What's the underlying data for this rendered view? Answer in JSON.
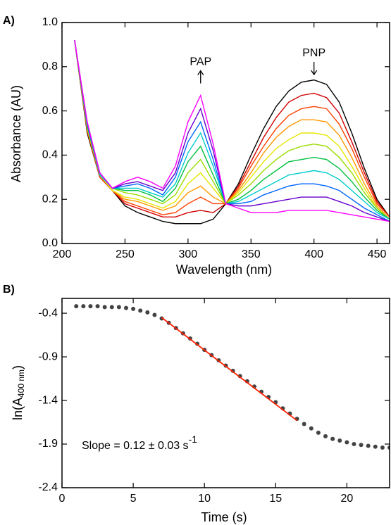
{
  "chart_data": [
    {
      "type": "line",
      "label": "A)",
      "xlabel": "Wavelength (nm)",
      "ylabel": "Absorbance (AU)",
      "xlim": [
        200,
        460
      ],
      "xticks": [
        200,
        250,
        300,
        350,
        400,
        450
      ],
      "ylim": [
        0,
        1
      ],
      "yticks": [
        {
          "value": 0,
          "label": "0.0"
        },
        0.2,
        0.4,
        0.6,
        0.8,
        {
          "value": 1,
          "label": "1.0"
        }
      ],
      "annotations": [
        {
          "text": "PAP",
          "x": 310,
          "y": 0.82,
          "arrow": "up"
        },
        {
          "text": "PNP",
          "x": 400,
          "y": 0.86,
          "arrow": "down"
        }
      ],
      "x": [
        210,
        220,
        230,
        240,
        250,
        260,
        270,
        280,
        290,
        300,
        310,
        320,
        330,
        340,
        350,
        360,
        370,
        380,
        390,
        400,
        410,
        420,
        430,
        440,
        450,
        460
      ],
      "series": [
        {
          "color": "#000000",
          "values": [
            0.92,
            0.5,
            0.3,
            0.24,
            0.17,
            0.14,
            0.12,
            0.1,
            0.09,
            0.09,
            0.09,
            0.11,
            0.18,
            0.27,
            0.4,
            0.52,
            0.62,
            0.69,
            0.73,
            0.74,
            0.72,
            0.64,
            0.5,
            0.34,
            0.2,
            0.12
          ]
        },
        {
          "color": "#d00000",
          "values": [
            0.92,
            0.51,
            0.3,
            0.24,
            0.18,
            0.16,
            0.14,
            0.12,
            0.12,
            0.14,
            0.15,
            0.14,
            0.18,
            0.26,
            0.37,
            0.48,
            0.57,
            0.64,
            0.67,
            0.68,
            0.66,
            0.59,
            0.46,
            0.32,
            0.19,
            0.12
          ]
        },
        {
          "color": "#ff4000",
          "values": [
            0.92,
            0.51,
            0.3,
            0.24,
            0.19,
            0.17,
            0.15,
            0.13,
            0.14,
            0.18,
            0.21,
            0.18,
            0.18,
            0.25,
            0.35,
            0.44,
            0.52,
            0.58,
            0.61,
            0.62,
            0.61,
            0.54,
            0.43,
            0.3,
            0.18,
            0.12
          ]
        },
        {
          "color": "#ff9900",
          "values": [
            0.92,
            0.52,
            0.31,
            0.24,
            0.2,
            0.19,
            0.17,
            0.15,
            0.17,
            0.23,
            0.26,
            0.21,
            0.18,
            0.24,
            0.32,
            0.41,
            0.48,
            0.53,
            0.56,
            0.56,
            0.55,
            0.49,
            0.39,
            0.27,
            0.17,
            0.11
          ]
        },
        {
          "color": "#e6e600",
          "values": [
            0.92,
            0.52,
            0.31,
            0.24,
            0.21,
            0.2,
            0.18,
            0.16,
            0.19,
            0.27,
            0.32,
            0.25,
            0.18,
            0.23,
            0.3,
            0.37,
            0.43,
            0.47,
            0.5,
            0.5,
            0.49,
            0.44,
            0.35,
            0.25,
            0.16,
            0.11
          ]
        },
        {
          "color": "#99dd00",
          "values": [
            0.92,
            0.53,
            0.31,
            0.25,
            0.23,
            0.22,
            0.2,
            0.18,
            0.22,
            0.32,
            0.38,
            0.28,
            0.18,
            0.22,
            0.27,
            0.33,
            0.38,
            0.42,
            0.44,
            0.45,
            0.44,
            0.39,
            0.32,
            0.23,
            0.16,
            0.11
          ]
        },
        {
          "color": "#00c040",
          "values": [
            0.92,
            0.53,
            0.31,
            0.25,
            0.24,
            0.24,
            0.22,
            0.19,
            0.25,
            0.37,
            0.44,
            0.31,
            0.18,
            0.2,
            0.24,
            0.29,
            0.33,
            0.37,
            0.38,
            0.39,
            0.38,
            0.34,
            0.28,
            0.21,
            0.15,
            0.11
          ]
        },
        {
          "color": "#00cccc",
          "values": [
            0.92,
            0.54,
            0.31,
            0.25,
            0.25,
            0.25,
            0.23,
            0.21,
            0.27,
            0.41,
            0.5,
            0.35,
            0.18,
            0.19,
            0.22,
            0.25,
            0.28,
            0.31,
            0.32,
            0.33,
            0.32,
            0.29,
            0.24,
            0.19,
            0.14,
            0.11
          ]
        },
        {
          "color": "#0066ff",
          "values": [
            0.92,
            0.54,
            0.32,
            0.25,
            0.26,
            0.27,
            0.25,
            0.22,
            0.3,
            0.46,
            0.55,
            0.38,
            0.18,
            0.18,
            0.19,
            0.22,
            0.24,
            0.26,
            0.27,
            0.27,
            0.26,
            0.24,
            0.2,
            0.16,
            0.13,
            0.1
          ]
        },
        {
          "color": "#6600cc",
          "values": [
            0.92,
            0.55,
            0.32,
            0.25,
            0.27,
            0.28,
            0.26,
            0.24,
            0.32,
            0.5,
            0.61,
            0.42,
            0.18,
            0.17,
            0.17,
            0.18,
            0.19,
            0.2,
            0.21,
            0.21,
            0.21,
            0.19,
            0.17,
            0.14,
            0.12,
            0.1
          ]
        },
        {
          "color": "#ff00ff",
          "values": [
            0.92,
            0.55,
            0.32,
            0.25,
            0.28,
            0.3,
            0.28,
            0.25,
            0.35,
            0.55,
            0.67,
            0.45,
            0.18,
            0.16,
            0.14,
            0.14,
            0.14,
            0.15,
            0.15,
            0.15,
            0.15,
            0.14,
            0.13,
            0.12,
            0.11,
            0.1
          ]
        }
      ]
    },
    {
      "type": "scatter",
      "label": "B)",
      "xlabel": "Time (s)",
      "ylabel": "ln(A",
      "ylabel_sub": "400 nm",
      "ylabel_end": ")",
      "slope_text": "Slope = 0.12 ± 0.03 s",
      "slope_sup": "-1",
      "xlim": [
        0,
        23
      ],
      "xticks": [
        0,
        5,
        10,
        15,
        20
      ],
      "ylim": [
        -2.4,
        -0.23
      ],
      "yticks": [
        -0.4,
        -0.9,
        -1.4,
        -1.9,
        -2.4
      ],
      "color": "#222222",
      "x": [
        1,
        1.5,
        2,
        2.5,
        3,
        3.5,
        4,
        4.5,
        5,
        5.5,
        6,
        6.5,
        7,
        7.5,
        8,
        8.5,
        9,
        9.5,
        10,
        10.5,
        11,
        11.5,
        12,
        12.5,
        13,
        13.5,
        14,
        14.5,
        15,
        15.5,
        16,
        16.5,
        17,
        17.5,
        18,
        18.5,
        19,
        19.5,
        20,
        20.5,
        21,
        21.5,
        22,
        22.5,
        23
      ],
      "values": [
        -0.32,
        -0.32,
        -0.32,
        -0.32,
        -0.33,
        -0.33,
        -0.33,
        -0.34,
        -0.35,
        -0.37,
        -0.39,
        -0.42,
        -0.46,
        -0.51,
        -0.57,
        -0.63,
        -0.69,
        -0.75,
        -0.82,
        -0.88,
        -0.94,
        -1.0,
        -1.06,
        -1.12,
        -1.18,
        -1.24,
        -1.3,
        -1.36,
        -1.42,
        -1.49,
        -1.55,
        -1.61,
        -1.67,
        -1.72,
        -1.77,
        -1.81,
        -1.84,
        -1.86,
        -1.88,
        -1.9,
        -1.91,
        -1.92,
        -1.93,
        -1.94,
        -1.94
      ],
      "fit": {
        "color": "#ff2000",
        "x": [
          7,
          16.5
        ],
        "values": [
          -0.45,
          -1.63
        ]
      }
    }
  ]
}
